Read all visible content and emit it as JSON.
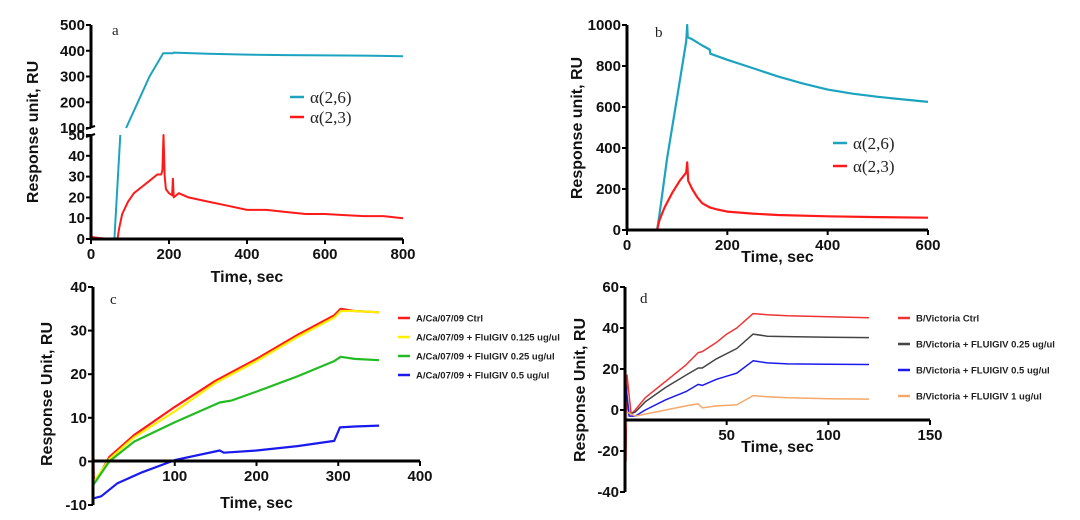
{
  "chart_data": [
    {
      "id": "a",
      "type": "line",
      "panel_label": "a",
      "xlabel": "Time, sec",
      "ylabel": "Response unit, RU",
      "xlim": [
        0,
        800
      ],
      "xticks": [
        0,
        200,
        400,
        600,
        800
      ],
      "y_axis_break": true,
      "ylim_lower": [
        0,
        50
      ],
      "yticks_lower": [
        0,
        10,
        20,
        30,
        40,
        50
      ],
      "ylim_upper": [
        100,
        500
      ],
      "yticks_upper": [
        100,
        200,
        300,
        400,
        500
      ],
      "legend_position": "center-right",
      "series": [
        {
          "name": "α(2,6)",
          "color": "#1ba3bf",
          "points": [
            [
              0,
              0
            ],
            [
              55,
              0
            ],
            [
              60,
              0
            ],
            [
              75,
              50
            ],
            [
              90,
              100
            ],
            [
              120,
              200
            ],
            [
              150,
              300
            ],
            [
              185,
              390
            ],
            [
              210,
              390
            ],
            [
              212,
              393
            ],
            [
              300,
              388
            ],
            [
              400,
              385
            ],
            [
              500,
              383
            ],
            [
              600,
              382
            ],
            [
              700,
              381
            ],
            [
              800,
              379
            ]
          ]
        },
        {
          "name": "α(2,3)",
          "color": "#ff1a1a",
          "points": [
            [
              0,
              1
            ],
            [
              20,
              0.5
            ],
            [
              50,
              0
            ],
            [
              68,
              0
            ],
            [
              72,
              5
            ],
            [
              80,
              12
            ],
            [
              95,
              18
            ],
            [
              110,
              22
            ],
            [
              130,
              25
            ],
            [
              150,
              28
            ],
            [
              170,
              31
            ],
            [
              180,
              31
            ],
            [
              183,
              33
            ],
            [
              186,
              50
            ],
            [
              189,
              30
            ],
            [
              192,
              24
            ],
            [
              200,
              22
            ],
            [
              208,
              21
            ],
            [
              210,
              29
            ],
            [
              212,
              20
            ],
            [
              225,
              22
            ],
            [
              250,
              20
            ],
            [
              300,
              18
            ],
            [
              350,
              16
            ],
            [
              400,
              14
            ],
            [
              450,
              14
            ],
            [
              500,
              13
            ],
            [
              550,
              12
            ],
            [
              600,
              12
            ],
            [
              650,
              11.5
            ],
            [
              700,
              11
            ],
            [
              750,
              11
            ],
            [
              800,
              10
            ]
          ]
        }
      ]
    },
    {
      "id": "b",
      "type": "line",
      "panel_label": "b",
      "xlabel": "Time, sec",
      "ylabel": "Response unit, RU",
      "xlim": [
        0,
        600
      ],
      "ylim": [
        0,
        1000
      ],
      "xticks": [
        0,
        200,
        400,
        600
      ],
      "yticks": [
        0,
        200,
        400,
        600,
        800,
        1000
      ],
      "legend_position": "right",
      "series": [
        {
          "name": "α(2,6)",
          "color": "#1ba3bf",
          "points": [
            [
              0,
              0
            ],
            [
              60,
              0
            ],
            [
              65,
              80
            ],
            [
              80,
              350
            ],
            [
              100,
              650
            ],
            [
              118,
              920
            ],
            [
              120,
              1000
            ],
            [
              121,
              940
            ],
            [
              130,
              930
            ],
            [
              150,
              900
            ],
            [
              165,
              880
            ],
            [
              166,
              860
            ],
            [
              200,
              830
            ],
            [
              250,
              790
            ],
            [
              300,
              750
            ],
            [
              350,
              715
            ],
            [
              400,
              685
            ],
            [
              450,
              665
            ],
            [
              500,
              650
            ],
            [
              550,
              637
            ],
            [
              600,
              625
            ]
          ]
        },
        {
          "name": "α(2,3)",
          "color": "#ff1a1a",
          "points": [
            [
              30,
              0
            ],
            [
              60,
              0
            ],
            [
              65,
              50
            ],
            [
              75,
              110
            ],
            [
              90,
              180
            ],
            [
              105,
              240
            ],
            [
              118,
              280
            ],
            [
              120,
              330
            ],
            [
              122,
              240
            ],
            [
              130,
              200
            ],
            [
              140,
              160
            ],
            [
              150,
              130
            ],
            [
              165,
              110
            ],
            [
              180,
              100
            ],
            [
              200,
              90
            ],
            [
              250,
              80
            ],
            [
              300,
              73
            ],
            [
              400,
              67
            ],
            [
              500,
              63
            ],
            [
              600,
              60
            ]
          ]
        }
      ]
    },
    {
      "id": "c",
      "type": "line",
      "panel_label": "c",
      "xlabel": "Time, sec",
      "ylabel": "Response Unit, RU",
      "xlim": [
        0,
        400
      ],
      "ylim": [
        -10,
        40
      ],
      "xticks": [
        100,
        200,
        300,
        400
      ],
      "yticks": [
        -10,
        0,
        10,
        20,
        30,
        40
      ],
      "legend_position": "right",
      "series": [
        {
          "name": "A/Ca/07/09 Ctrl",
          "color": "#ff1a1a",
          "points": [
            [
              0,
              7
            ],
            [
              1,
              -4
            ],
            [
              5,
              -4
            ],
            [
              20,
              1
            ],
            [
              50,
              6
            ],
            [
              100,
              12.5
            ],
            [
              150,
              18.5
            ],
            [
              200,
              23.5
            ],
            [
              250,
              29
            ],
            [
              295,
              33.5
            ],
            [
              303,
              35
            ],
            [
              320,
              34.5
            ],
            [
              350,
              34.2
            ]
          ]
        },
        {
          "name": "A/Ca/07/09 + FluIGIV 0.125 ug/ul",
          "color": "#ffee00",
          "points": [
            [
              0,
              -5
            ],
            [
              20,
              0.5
            ],
            [
              50,
              5.5
            ],
            [
              100,
              11.5
            ],
            [
              150,
              18
            ],
            [
              200,
              23
            ],
            [
              250,
              28.5
            ],
            [
              295,
              33
            ],
            [
              303,
              34.5
            ],
            [
              320,
              34.5
            ],
            [
              350,
              34.2
            ]
          ]
        },
        {
          "name": "A/Ca/07/09 + FluIGIV 0.25 ug/ul",
          "color": "#22bb22",
          "points": [
            [
              0,
              -5.5
            ],
            [
              20,
              0
            ],
            [
              50,
              4.5
            ],
            [
              100,
              9
            ],
            [
              155,
              13.5
            ],
            [
              170,
              14
            ],
            [
              200,
              16
            ],
            [
              250,
              19.5
            ],
            [
              295,
              23
            ],
            [
              303,
              24
            ],
            [
              320,
              23.5
            ],
            [
              350,
              23.2
            ]
          ]
        },
        {
          "name": "A/Ca/07/09 + FluIGIV 0.5 ug/ul",
          "color": "#1a1aee",
          "points": [
            [
              0,
              -8.5
            ],
            [
              10,
              -8
            ],
            [
              30,
              -5
            ],
            [
              60,
              -2.5
            ],
            [
              100,
              0.3
            ],
            [
              155,
              2.5
            ],
            [
              160,
              2
            ],
            [
              200,
              2.5
            ],
            [
              250,
              3.5
            ],
            [
              295,
              4.7
            ],
            [
              302,
              7.8
            ],
            [
              320,
              8
            ],
            [
              350,
              8.2
            ]
          ]
        }
      ]
    },
    {
      "id": "d",
      "type": "line",
      "panel_label": "d",
      "xlabel": "Time, sec",
      "ylabel": "Response Unit, RU",
      "xlim": [
        0,
        150
      ],
      "ylim": [
        -40,
        60
      ],
      "xticks": [
        50,
        100,
        150
      ],
      "yticks": [
        -40,
        -20,
        0,
        20,
        40,
        60
      ],
      "legend_position": "right",
      "series": [
        {
          "name": "B/Victoria Ctrl",
          "color": "#ee3333",
          "points": [
            [
              0,
              17
            ],
            [
              0.5,
              -25
            ],
            [
              1,
              17
            ],
            [
              3,
              -2
            ],
            [
              5,
              0
            ],
            [
              10,
              6
            ],
            [
              20,
              14
            ],
            [
              30,
              22
            ],
            [
              36,
              28
            ],
            [
              38,
              28.5
            ],
            [
              45,
              33
            ],
            [
              50,
              37
            ],
            [
              55,
              40
            ],
            [
              63,
              47
            ],
            [
              70,
              46.5
            ],
            [
              80,
              46
            ],
            [
              100,
              45.5
            ],
            [
              120,
              45
            ]
          ]
        },
        {
          "name": "B/Victoria + FLUIGIV 0.25 ug/ul",
          "color": "#444444",
          "points": [
            [
              0,
              16
            ],
            [
              2,
              -2
            ],
            [
              5,
              -1
            ],
            [
              10,
              4
            ],
            [
              20,
              11
            ],
            [
              30,
              17
            ],
            [
              36,
              20.5
            ],
            [
              38,
              20.5
            ],
            [
              45,
              25
            ],
            [
              55,
              30
            ],
            [
              63,
              37
            ],
            [
              70,
              36
            ],
            [
              80,
              35.8
            ],
            [
              100,
              35.5
            ],
            [
              120,
              35.3
            ]
          ]
        },
        {
          "name": "B/Victoria + FLUIGIV 0.5 ug/ul",
          "color": "#1a1aee",
          "points": [
            [
              0,
              15
            ],
            [
              2,
              -3
            ],
            [
              5,
              -3
            ],
            [
              10,
              0
            ],
            [
              20,
              5
            ],
            [
              30,
              9
            ],
            [
              36,
              12.5
            ],
            [
              38,
              12
            ],
            [
              45,
              15
            ],
            [
              50,
              16.5
            ],
            [
              55,
              18
            ],
            [
              63,
              24
            ],
            [
              70,
              23
            ],
            [
              80,
              22.5
            ],
            [
              100,
              22.3
            ],
            [
              120,
              22.2
            ]
          ]
        },
        {
          "name": "B/Victoria + FLUIGIV 1 ug/ul",
          "color": "#f5a86a",
          "points": [
            [
              0,
              -15
            ],
            [
              1,
              -1
            ],
            [
              5,
              -3
            ],
            [
              10,
              -2
            ],
            [
              20,
              0
            ],
            [
              30,
              2
            ],
            [
              36,
              3
            ],
            [
              38,
              1
            ],
            [
              45,
              2
            ],
            [
              55,
              2.5
            ],
            [
              63,
              7
            ],
            [
              70,
              6.5
            ],
            [
              80,
              6
            ],
            [
              100,
              5.5
            ],
            [
              120,
              5.3
            ]
          ]
        }
      ]
    }
  ]
}
